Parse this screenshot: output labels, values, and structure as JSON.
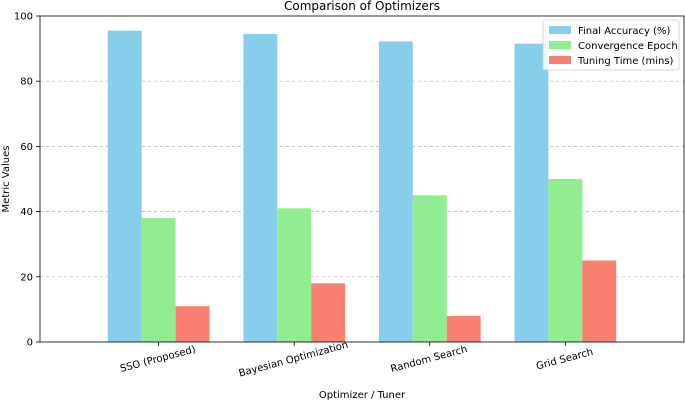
{
  "chart_data": {
    "type": "bar",
    "title": "Comparison of Optimizers",
    "xlabel": "Optimizer / Tuner",
    "ylabel": "Metric Values",
    "categories": [
      "SSO (Proposed)",
      "Bayesian Optimization",
      "Random Search",
      "Grid Search"
    ],
    "series": [
      {
        "name": "Final Accuracy (%)",
        "values": [
          95.5,
          94.5,
          92.2,
          91.5
        ],
        "color": "#87ceeb"
      },
      {
        "name": "Convergence Epoch",
        "values": [
          38,
          41,
          45,
          50
        ],
        "color": "#90ee90"
      },
      {
        "name": "Tuning Time (mins)",
        "values": [
          11,
          18,
          8,
          25
        ],
        "color": "#fa8072"
      }
    ],
    "ylim": [
      0,
      100
    ],
    "yticks": [
      0,
      20,
      40,
      60,
      80,
      100
    ],
    "grid": "y-dashed",
    "legend_position": "top-right"
  }
}
